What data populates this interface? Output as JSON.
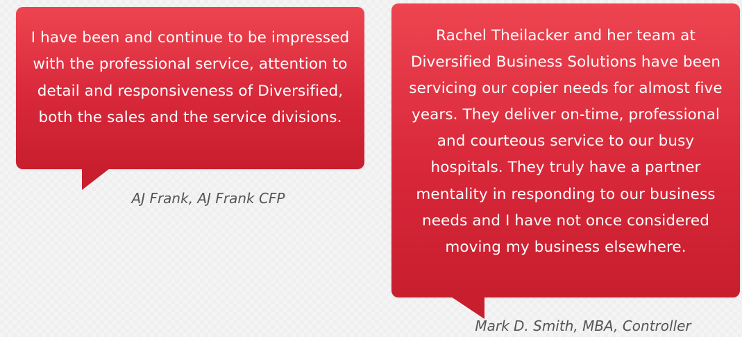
{
  "testimonials": [
    {
      "quote": "I have been and continue to be impressed with the professional service, attention to detail and responsiveness of Diversified, both the sales and the service divisions.",
      "author": "AJ Frank, AJ Frank CFP"
    },
    {
      "quote": "Rachel Theilacker and her team at Diversified Business Solutions have been servicing our copier needs for almost five years. They deliver on-time, professional and courteous service to our busy hospitals. They truly have a partner mentality in responding to our business needs and I have not once considered moving my business elsewhere.",
      "author": "Mark D. Smith, MBA, Controller"
    }
  ],
  "colors": {
    "bubble_top": "#ee4450",
    "bubble_bottom": "#c81e2e",
    "author_text": "#555555",
    "background": "#f4f4f4"
  }
}
